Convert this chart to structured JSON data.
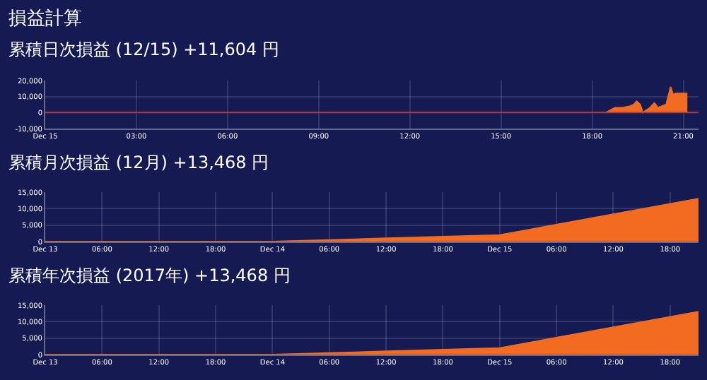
{
  "chart_data": [
    {
      "type": "area",
      "title": "損益計算",
      "subtitle": "累積日次損益 (12/15) +11,604 円",
      "x": [
        "2017-12-15T18:27",
        "2017-12-15T18:45",
        "2017-12-15T19:00",
        "2017-12-15T19:15",
        "2017-12-15T19:22",
        "2017-12-15T19:28",
        "2017-12-15T19:35",
        "2017-12-15T19:40",
        "2017-12-15T19:54",
        "2017-12-15T20:03",
        "2017-12-15T20:10",
        "2017-12-15T20:18",
        "2017-12-15T20:26",
        "2017-12-15T20:35",
        "2017-12-15T20:40",
        "2017-12-15T20:45",
        "2017-12-15T20:52",
        "2017-12-15T21:00",
        "2017-12-15T21:08"
      ],
      "series": [
        {
          "color": "#f26b21",
          "values": [
            0,
            3000,
            3000,
            4000,
            5000,
            7000,
            5000,
            0,
            3000,
            6000,
            3000,
            4000,
            5000,
            16000,
            11000,
            12000,
            12000,
            12000,
            12000
          ]
        }
      ],
      "xlim": [
        "2017-12-15T00:00",
        "2017-12-15T21:30"
      ],
      "xticks": [
        {
          "value": "2017-12-15T00:00",
          "label": "Dec 15"
        },
        {
          "value": "2017-12-15T03:00",
          "label": "03:00"
        },
        {
          "value": "2017-12-15T06:00",
          "label": "06:00"
        },
        {
          "value": "2017-12-15T09:00",
          "label": "09:00"
        },
        {
          "value": "2017-12-15T12:00",
          "label": "12:00"
        },
        {
          "value": "2017-12-15T15:00",
          "label": "15:00"
        },
        {
          "value": "2017-12-15T18:00",
          "label": "18:00"
        },
        {
          "value": "2017-12-15T21:00",
          "label": "21:00"
        }
      ],
      "ylim": [
        -10000,
        20000
      ],
      "yticks": [
        {
          "value": -10000,
          "label": "-10,000"
        },
        {
          "value": 0,
          "label": "0"
        },
        {
          "value": 10000,
          "label": "10,000"
        },
        {
          "value": 20000,
          "label": "20,000"
        }
      ],
      "ref_lines": [
        {
          "axis": "y",
          "value": 0,
          "color": "#b03a3a"
        }
      ],
      "grid": true
    },
    {
      "type": "area",
      "title": "累積月次損益 (12月) +13,468 円",
      "x": [
        "2017-12-13T00:00",
        "2017-12-13T12:00",
        "2017-12-14T00:00",
        "2017-12-14T12:00",
        "2017-12-15T00:00",
        "2017-12-15T21:00"
      ],
      "series": [
        {
          "color": "#f26b21",
          "values": [
            0,
            0,
            0,
            1000,
            2000,
            13000
          ]
        }
      ],
      "xlim": [
        "2017-12-13T00:00",
        "2017-12-15T21:00"
      ],
      "xticks": [
        {
          "value": "2017-12-13T00:00",
          "label": "Dec 13"
        },
        {
          "value": "2017-12-13T06:00",
          "label": "06:00"
        },
        {
          "value": "2017-12-13T12:00",
          "label": "12:00"
        },
        {
          "value": "2017-12-13T18:00",
          "label": "18:00"
        },
        {
          "value": "2017-12-14T00:00",
          "label": "Dec 14"
        },
        {
          "value": "2017-12-14T06:00",
          "label": "06:00"
        },
        {
          "value": "2017-12-14T12:00",
          "label": "12:00"
        },
        {
          "value": "2017-12-14T18:00",
          "label": "18:00"
        },
        {
          "value": "2017-12-15T00:00",
          "label": "Dec 15"
        },
        {
          "value": "2017-12-15T06:00",
          "label": "06:00"
        },
        {
          "value": "2017-12-15T12:00",
          "label": "12:00"
        },
        {
          "value": "2017-12-15T18:00",
          "label": "18:00"
        }
      ],
      "ylim": [
        0,
        15000
      ],
      "yticks": [
        {
          "value": 0,
          "label": "0"
        },
        {
          "value": 5000,
          "label": "5,000"
        },
        {
          "value": 10000,
          "label": "10,000"
        },
        {
          "value": 15000,
          "label": "15,000"
        }
      ],
      "grid": true
    },
    {
      "type": "area",
      "title": "累積年次損益 (2017年) +13,468 円",
      "x": [
        "2017-12-13T00:00",
        "2017-12-13T12:00",
        "2017-12-14T00:00",
        "2017-12-14T12:00",
        "2017-12-15T00:00",
        "2017-12-15T21:00"
      ],
      "series": [
        {
          "color": "#f26b21",
          "values": [
            0,
            0,
            0,
            1000,
            2000,
            13000
          ]
        }
      ],
      "xlim": [
        "2017-12-13T00:00",
        "2017-12-15T21:00"
      ],
      "xticks": [
        {
          "value": "2017-12-13T00:00",
          "label": "Dec 13"
        },
        {
          "value": "2017-12-13T06:00",
          "label": "06:00"
        },
        {
          "value": "2017-12-13T12:00",
          "label": "12:00"
        },
        {
          "value": "2017-12-13T18:00",
          "label": "18:00"
        },
        {
          "value": "2017-12-14T00:00",
          "label": "Dec 14"
        },
        {
          "value": "2017-12-14T06:00",
          "label": "06:00"
        },
        {
          "value": "2017-12-14T12:00",
          "label": "12:00"
        },
        {
          "value": "2017-12-14T18:00",
          "label": "18:00"
        },
        {
          "value": "2017-12-15T00:00",
          "label": "Dec 15"
        },
        {
          "value": "2017-12-15T06:00",
          "label": "06:00"
        },
        {
          "value": "2017-12-15T12:00",
          "label": "12:00"
        },
        {
          "value": "2017-12-15T18:00",
          "label": "18:00"
        }
      ],
      "ylim": [
        0,
        15000
      ],
      "yticks": [
        {
          "value": 0,
          "label": "0"
        },
        {
          "value": 5000,
          "label": "5,000"
        },
        {
          "value": 10000,
          "label": "10,000"
        },
        {
          "value": 15000,
          "label": "15,000"
        }
      ],
      "grid": true
    }
  ]
}
